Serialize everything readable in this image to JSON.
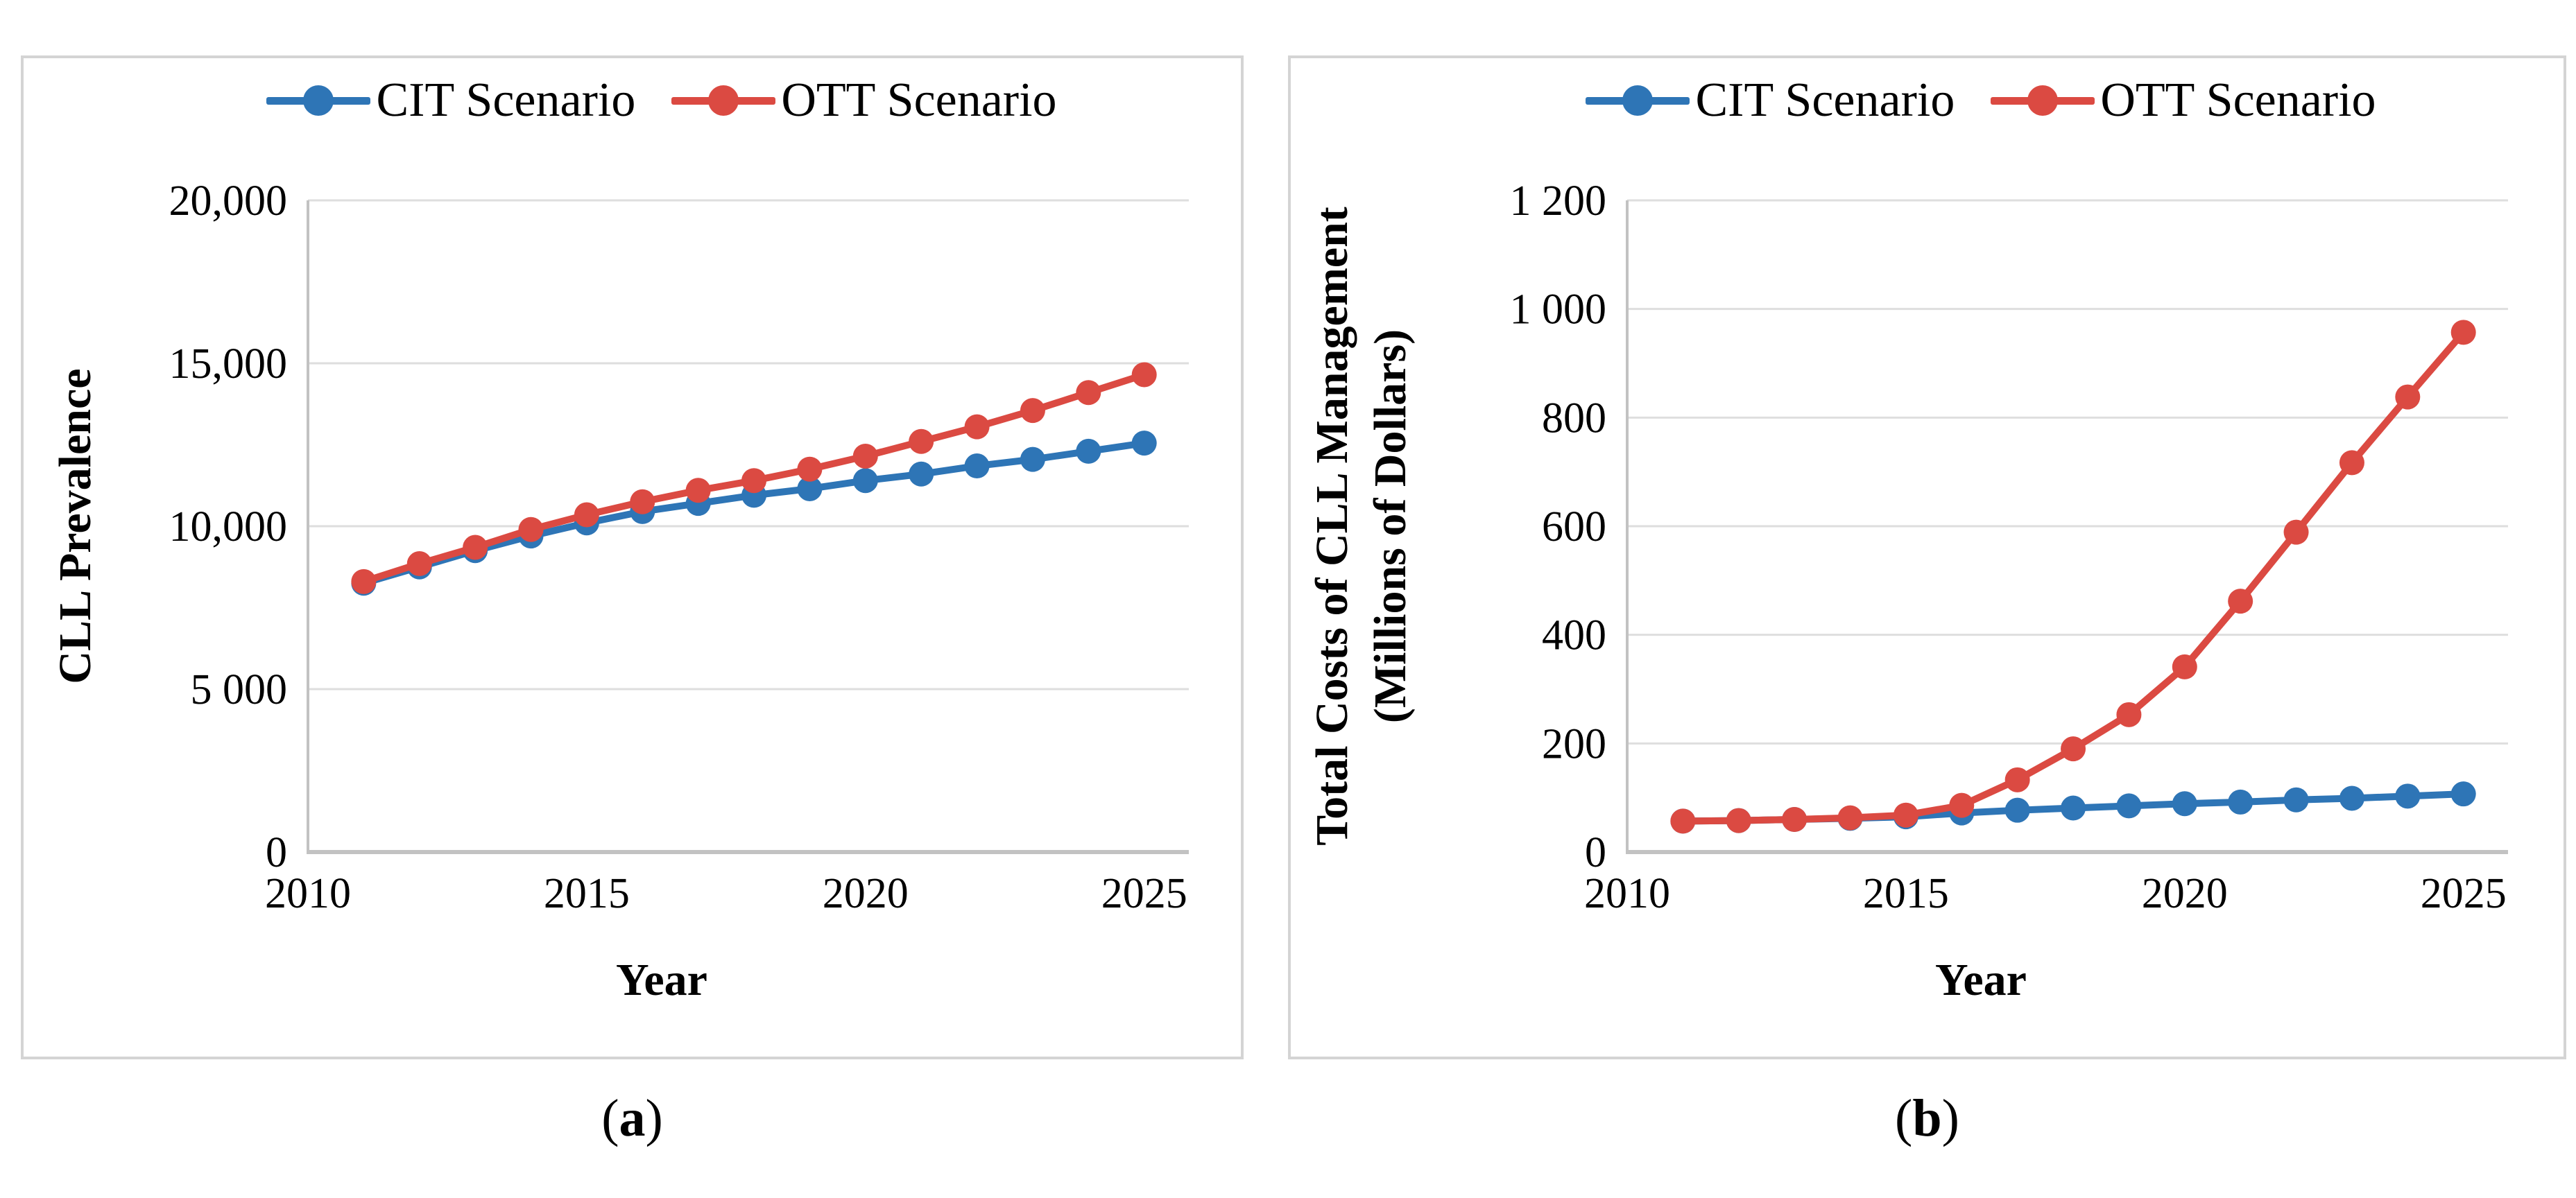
{
  "figure": {
    "caption_a": {
      "open": "(",
      "letter": "a",
      "close": ")"
    },
    "caption_b": {
      "open": "(",
      "letter": "b",
      "close": ")"
    }
  },
  "style": {
    "cit_color": "#2e75b6",
    "ott_color": "#db4a42",
    "grid_color": "#dedede",
    "axis_color": "#c2c2c2",
    "text_color": "#000000",
    "panel_border_color": "#d4d4d4"
  },
  "chart_data": [
    {
      "type": "line",
      "panel": "a",
      "title": "",
      "xlabel": "Year",
      "ylabel": "CLL Prevalence",
      "x": [
        2011,
        2012,
        2013,
        2014,
        2015,
        2016,
        2017,
        2018,
        2019,
        2020,
        2021,
        2022,
        2023,
        2024,
        2025
      ],
      "xticks": [
        2010,
        2015,
        2020,
        2025
      ],
      "xtick_labels": [
        "2010",
        "2015",
        "2020",
        "2025"
      ],
      "xlim": [
        2010,
        2025.8
      ],
      "ylim": [
        0,
        20000
      ],
      "yticks": [
        0,
        5000,
        10000,
        15000,
        20000
      ],
      "ytick_labels": [
        "0",
        "5 000",
        "10,000",
        "15,000",
        "20,000"
      ],
      "grid": true,
      "legend_position": "top",
      "series": [
        {
          "name": "CIT Scenario",
          "color": "#2e75b6",
          "values": [
            8250,
            8750,
            9250,
            9700,
            10100,
            10450,
            10700,
            10950,
            11150,
            11400,
            11600,
            11850,
            12050,
            12300,
            12550
          ]
        },
        {
          "name": "OTT Scenario",
          "color": "#db4a42",
          "values": [
            8300,
            8850,
            9350,
            9900,
            10350,
            10750,
            11100,
            11400,
            11750,
            12150,
            12600,
            13050,
            13550,
            14100,
            14650
          ]
        }
      ]
    },
    {
      "type": "line",
      "panel": "b",
      "title": "",
      "xlabel": "Year",
      "ylabel": "Total Costs of CLL Management (Millions of Dollars)",
      "ylabel_lines": [
        "Total Costs of CLL Management",
        "(Millions of Dollars)"
      ],
      "x": [
        2011,
        2012,
        2013,
        2014,
        2015,
        2016,
        2017,
        2018,
        2019,
        2020,
        2021,
        2022,
        2023,
        2024,
        2025
      ],
      "xticks": [
        2010,
        2015,
        2020,
        2025
      ],
      "xtick_labels": [
        "2010",
        "2015",
        "2020",
        "2025"
      ],
      "xlim": [
        2010,
        2025.8
      ],
      "ylim": [
        0,
        1200
      ],
      "yticks": [
        0,
        200,
        400,
        600,
        800,
        1000,
        1200
      ],
      "ytick_labels": [
        "0",
        "200",
        "400",
        "600",
        "800",
        "1 000",
        "1 200"
      ],
      "grid": true,
      "legend_position": "top",
      "series": [
        {
          "name": "CIT Scenario",
          "color": "#2e75b6",
          "values": [
            57,
            58,
            60,
            62,
            65,
            72,
            77,
            81,
            85,
            89,
            92,
            96,
            99,
            103,
            107
          ]
        },
        {
          "name": "OTT Scenario",
          "color": "#db4a42",
          "values": [
            57,
            58,
            60,
            63,
            68,
            86,
            133,
            190,
            253,
            341,
            462,
            589,
            717,
            838,
            957
          ]
        }
      ]
    }
  ]
}
